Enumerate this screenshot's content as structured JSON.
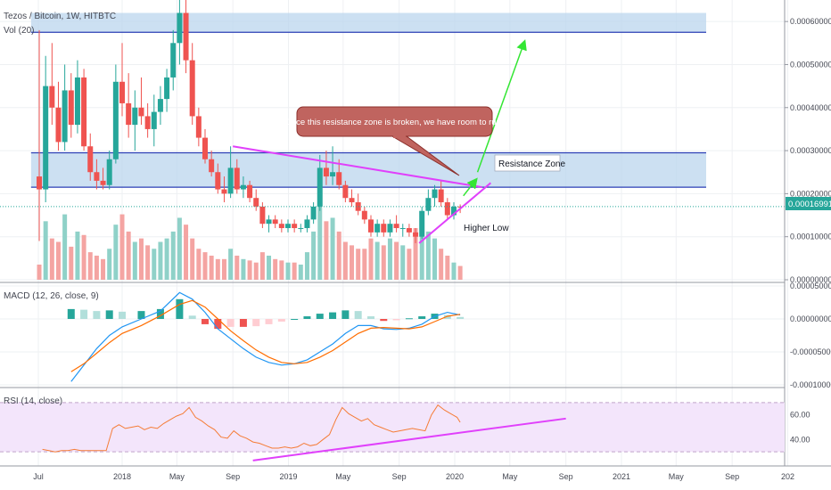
{
  "chart_data": [
    {
      "type": "candlestick",
      "pane": "price",
      "title": "Tezos / Bitcoin, 1W, HITBTC",
      "volume_label": "Vol (20)",
      "ylim": [
        0.0,
        0.00065
      ],
      "y_ticks": [
        "0.00000000",
        "0.00010000",
        "0.00020000",
        "0.00030000",
        "0.00040000",
        "0.00050000",
        "0.00060000"
      ],
      "last_price": "0.00016991",
      "colors": {
        "up": "#26a69a",
        "down": "#ef5350",
        "vol_up": "#8fd1c8",
        "vol_down": "#f4a4a2",
        "zone_fill": "#bbd6ee",
        "zone_line": "#2b3fb5",
        "magenta": "#e040fb",
        "green": "#33e633"
      },
      "zones": [
        {
          "top": 0.00062,
          "bottom": 0.000575
        },
        {
          "top": 0.000295,
          "bottom": 0.000215,
          "label": "Resistance Zone"
        }
      ],
      "trendlines": [
        {
          "from": [
            "2018-09-01",
            0.00031
          ],
          "to": [
            "2020-03-01",
            0.000215
          ]
        },
        {
          "from": [
            "2019-10-15",
            8.5e-05
          ],
          "to": [
            "2020-03-20",
            0.000225
          ]
        }
      ],
      "annotations": {
        "callout": "Once this resistance zone is broken, we have room to run!",
        "higher_low": "Higher Low",
        "resistance": "Resistance Zone"
      },
      "candles": [
        {
          "x": "2017-07-03",
          "o": 0.00024,
          "h": 0.00058,
          "l": 9e-05,
          "c": 0.00021
        },
        {
          "x": "2017-07-17",
          "o": 0.00021,
          "h": 0.00052,
          "l": 0.00018,
          "c": 0.00045
        },
        {
          "x": "2017-07-31",
          "o": 0.00045,
          "h": 0.00055,
          "l": 0.00036,
          "c": 0.0004
        },
        {
          "x": "2017-08-14",
          "o": 0.0004,
          "h": 0.00046,
          "l": 0.0003,
          "c": 0.00032
        },
        {
          "x": "2017-08-28",
          "o": 0.00032,
          "h": 0.0005,
          "l": 0.0003,
          "c": 0.00044
        },
        {
          "x": "2017-09-11",
          "o": 0.00044,
          "h": 0.00048,
          "l": 0.00033,
          "c": 0.00036
        },
        {
          "x": "2017-09-25",
          "o": 0.00036,
          "h": 0.00051,
          "l": 0.00034,
          "c": 0.00047
        },
        {
          "x": "2017-10-09",
          "o": 0.00047,
          "h": 0.00049,
          "l": 0.0003,
          "c": 0.00031
        },
        {
          "x": "2017-10-23",
          "o": 0.00031,
          "h": 0.00034,
          "l": 0.00023,
          "c": 0.00025
        },
        {
          "x": "2017-11-06",
          "o": 0.00025,
          "h": 0.00028,
          "l": 0.00021,
          "c": 0.00023
        },
        {
          "x": "2017-11-20",
          "o": 0.00023,
          "h": 0.00026,
          "l": 0.00021,
          "c": 0.00022
        },
        {
          "x": "2017-12-04",
          "o": 0.00022,
          "h": 0.0003,
          "l": 0.00021,
          "c": 0.00028
        },
        {
          "x": "2017-12-18",
          "o": 0.00028,
          "h": 0.0005,
          "l": 0.00027,
          "c": 0.00046
        },
        {
          "x": "2018-01-01",
          "o": 0.00046,
          "h": 0.00055,
          "l": 0.00038,
          "c": 0.00041
        },
        {
          "x": "2018-01-15",
          "o": 0.00041,
          "h": 0.00048,
          "l": 0.00033,
          "c": 0.00036
        },
        {
          "x": "2018-01-29",
          "o": 0.00036,
          "h": 0.00044,
          "l": 0.0003,
          "c": 0.0004
        },
        {
          "x": "2018-02-12",
          "o": 0.0004,
          "h": 0.00047,
          "l": 0.00036,
          "c": 0.00038
        },
        {
          "x": "2018-02-26",
          "o": 0.00038,
          "h": 0.00041,
          "l": 0.00033,
          "c": 0.00035
        },
        {
          "x": "2018-03-12",
          "o": 0.00035,
          "h": 0.00043,
          "l": 0.00031,
          "c": 0.00039
        },
        {
          "x": "2018-03-26",
          "o": 0.00039,
          "h": 0.00045,
          "l": 0.00036,
          "c": 0.00042
        },
        {
          "x": "2018-04-09",
          "o": 0.00042,
          "h": 0.00049,
          "l": 0.00039,
          "c": 0.00047
        },
        {
          "x": "2018-04-23",
          "o": 0.00047,
          "h": 0.00058,
          "l": 0.00044,
          "c": 0.00055
        },
        {
          "x": "2018-05-07",
          "o": 0.00055,
          "h": 0.00066,
          "l": 0.0005,
          "c": 0.00062
        },
        {
          "x": "2018-05-21",
          "o": 0.00062,
          "h": 0.00066,
          "l": 0.00048,
          "c": 0.00051
        },
        {
          "x": "2018-06-04",
          "o": 0.00051,
          "h": 0.00055,
          "l": 0.00036,
          "c": 0.00038
        },
        {
          "x": "2018-06-18",
          "o": 0.00038,
          "h": 0.0004,
          "l": 0.00031,
          "c": 0.00033
        },
        {
          "x": "2018-07-02",
          "o": 0.00033,
          "h": 0.00035,
          "l": 0.00027,
          "c": 0.00028
        },
        {
          "x": "2018-07-16",
          "o": 0.00028,
          "h": 0.0003,
          "l": 0.00024,
          "c": 0.00025
        },
        {
          "x": "2018-07-30",
          "o": 0.00025,
          "h": 0.00027,
          "l": 0.0002,
          "c": 0.00021
        },
        {
          "x": "2018-08-13",
          "o": 0.00021,
          "h": 0.00024,
          "l": 0.00018,
          "c": 0.0002
        },
        {
          "x": "2018-08-27",
          "o": 0.0002,
          "h": 0.00031,
          "l": 0.00019,
          "c": 0.00026
        },
        {
          "x": "2018-09-10",
          "o": 0.00026,
          "h": 0.00028,
          "l": 0.0002,
          "c": 0.00021
        },
        {
          "x": "2018-09-24",
          "o": 0.00021,
          "h": 0.00024,
          "l": 0.00019,
          "c": 0.00022
        },
        {
          "x": "2018-10-08",
          "o": 0.00022,
          "h": 0.00023,
          "l": 0.00018,
          "c": 0.00019
        },
        {
          "x": "2018-10-22",
          "o": 0.00019,
          "h": 0.00021,
          "l": 0.00016,
          "c": 0.00017
        },
        {
          "x": "2018-11-05",
          "o": 0.00017,
          "h": 0.00018,
          "l": 0.00012,
          "c": 0.00013
        },
        {
          "x": "2018-11-19",
          "o": 0.00013,
          "h": 0.00015,
          "l": 0.00011,
          "c": 0.00014
        },
        {
          "x": "2018-12-03",
          "o": 0.00014,
          "h": 0.00015,
          "l": 0.00012,
          "c": 0.00013
        },
        {
          "x": "2018-12-17",
          "o": 0.00013,
          "h": 0.00014,
          "l": 0.00011,
          "c": 0.00012
        },
        {
          "x": "2018-12-31",
          "o": 0.00012,
          "h": 0.00014,
          "l": 0.00011,
          "c": 0.00013
        },
        {
          "x": "2019-01-14",
          "o": 0.00013,
          "h": 0.00014,
          "l": 0.00011,
          "c": 0.00012
        },
        {
          "x": "2019-01-28",
          "o": 0.00012,
          "h": 0.00013,
          "l": 0.00011,
          "c": 0.00012
        },
        {
          "x": "2019-02-11",
          "o": 0.00012,
          "h": 0.00015,
          "l": 0.00011,
          "c": 0.00014
        },
        {
          "x": "2019-02-25",
          "o": 0.00014,
          "h": 0.00018,
          "l": 0.00013,
          "c": 0.00017
        },
        {
          "x": "2019-03-11",
          "o": 0.00017,
          "h": 0.00029,
          "l": 0.00016,
          "c": 0.00026
        },
        {
          "x": "2019-03-25",
          "o": 0.00026,
          "h": 0.0003,
          "l": 0.00022,
          "c": 0.00024
        },
        {
          "x": "2019-04-08",
          "o": 0.00024,
          "h": 0.00031,
          "l": 0.00022,
          "c": 0.00025
        },
        {
          "x": "2019-04-22",
          "o": 0.00025,
          "h": 0.00028,
          "l": 0.00021,
          "c": 0.00022
        },
        {
          "x": "2019-05-06",
          "o": 0.00022,
          "h": 0.00023,
          "l": 0.00018,
          "c": 0.00019
        },
        {
          "x": "2019-05-20",
          "o": 0.00019,
          "h": 0.00021,
          "l": 0.00017,
          "c": 0.00018
        },
        {
          "x": "2019-06-03",
          "o": 0.00018,
          "h": 0.0002,
          "l": 0.00015,
          "c": 0.00016
        },
        {
          "x": "2019-06-17",
          "o": 0.00016,
          "h": 0.00017,
          "l": 0.00013,
          "c": 0.00014
        },
        {
          "x": "2019-07-01",
          "o": 0.00014,
          "h": 0.00015,
          "l": 0.0001,
          "c": 0.00011
        },
        {
          "x": "2019-07-15",
          "o": 0.00011,
          "h": 0.00014,
          "l": 0.0001,
          "c": 0.00013
        },
        {
          "x": "2019-07-29",
          "o": 0.00013,
          "h": 0.00014,
          "l": 0.0001,
          "c": 0.00011
        },
        {
          "x": "2019-08-12",
          "o": 0.00011,
          "h": 0.00014,
          "l": 0.0001,
          "c": 0.00013
        },
        {
          "x": "2019-08-26",
          "o": 0.00013,
          "h": 0.00015,
          "l": 0.00011,
          "c": 0.00012
        },
        {
          "x": "2019-09-09",
          "o": 0.00012,
          "h": 0.00013,
          "l": 0.0001,
          "c": 0.00012
        },
        {
          "x": "2019-09-23",
          "o": 0.00012,
          "h": 0.00013,
          "l": 0.0001,
          "c": 0.00011
        },
        {
          "x": "2019-10-07",
          "o": 0.00011,
          "h": 0.00012,
          "l": 8.5e-05,
          "c": 0.0001
        },
        {
          "x": "2019-10-21",
          "o": 0.0001,
          "h": 0.00017,
          "l": 9.5e-05,
          "c": 0.00016
        },
        {
          "x": "2019-11-04",
          "o": 0.00016,
          "h": 0.00021,
          "l": 0.00015,
          "c": 0.00019
        },
        {
          "x": "2019-11-18",
          "o": 0.00019,
          "h": 0.00022,
          "l": 0.00017,
          "c": 0.00021
        },
        {
          "x": "2019-12-02",
          "o": 0.00021,
          "h": 0.00023,
          "l": 0.00017,
          "c": 0.00018
        },
        {
          "x": "2019-12-16",
          "o": 0.00018,
          "h": 0.00019,
          "l": 0.00014,
          "c": 0.00015
        },
        {
          "x": "2019-12-30",
          "o": 0.00015,
          "h": 0.00018,
          "l": 0.00014,
          "c": 0.00017
        },
        {
          "x": "2020-01-13",
          "o": 0.00017,
          "h": 0.000175,
          "l": 0.000155,
          "c": 0.00016991
        }
      ],
      "volume": [
        22,
        85,
        60,
        55,
        95,
        48,
        70,
        65,
        40,
        35,
        30,
        45,
        80,
        95,
        70,
        55,
        60,
        50,
        45,
        55,
        60,
        70,
        90,
        80,
        60,
        45,
        40,
        35,
        30,
        30,
        45,
        35,
        30,
        28,
        25,
        40,
        35,
        30,
        28,
        25,
        25,
        22,
        40,
        70,
        110,
        85,
        90,
        70,
        55,
        50,
        45,
        45,
        60,
        55,
        50,
        60,
        55,
        50,
        45,
        75,
        85,
        70,
        60,
        45,
        35,
        25,
        20
      ]
    },
    {
      "type": "line",
      "pane": "macd",
      "title": "MACD (12, 26, close, 9)",
      "ylim": [
        -0.0001,
        5e-05
      ],
      "y_ticks": [
        "0.00005000",
        "0.00000000",
        "-0.00005000",
        "-0.00010000"
      ],
      "colors": {
        "macd": "#2196f3",
        "signal": "#ff6d00",
        "hist_pos_strong": "#26a69a",
        "hist_pos_weak": "#b2dfdb",
        "hist_neg_strong": "#ef5350",
        "hist_neg_weak": "#ffcdd2"
      },
      "x": [
        "2017-09-11",
        "2017-10-09",
        "2017-11-06",
        "2017-12-04",
        "2018-01-01",
        "2018-02-12",
        "2018-03-26",
        "2018-05-07",
        "2018-06-04",
        "2018-07-02",
        "2018-07-30",
        "2018-08-27",
        "2018-09-24",
        "2018-10-22",
        "2018-11-19",
        "2018-12-17",
        "2019-01-14",
        "2019-02-11",
        "2019-03-11",
        "2019-04-08",
        "2019-05-06",
        "2019-06-03",
        "2019-07-01",
        "2019-07-29",
        "2019-08-26",
        "2019-09-23",
        "2019-10-21",
        "2019-11-18",
        "2019-12-16",
        "2020-01-13"
      ],
      "series": [
        {
          "name": "",
          "values": [
            -9.5e-05,
            -7e-05,
            -4.5e-05,
            -2.5e-05,
            -1.2e-05,
            0.0,
            1.2e-05,
            4e-05,
            3e-05,
            1e-05,
            -1.5e-05,
            -3e-05,
            -4.5e-05,
            -5.8e-05,
            -6.6e-05,
            -7e-05,
            -6.8e-05,
            -6.2e-05,
            -5e-05,
            -3.8e-05,
            -2.2e-05,
            -1e-05,
            -1e-05,
            -1.5e-05,
            -1.6e-05,
            -1.4e-05,
            -8e-06,
            4e-06,
            1e-05,
            6e-06
          ]
        },
        {
          "name": "",
          "values": [
            -8e-05,
            -6.8e-05,
            -5.2e-05,
            -3.6e-05,
            -2.2e-05,
            -1e-05,
            5e-06,
            2.2e-05,
            2.8e-05,
            1.8e-05,
            0.0,
            -1.8e-05,
            -3.3e-05,
            -4.7e-05,
            -5.8e-05,
            -6.6e-05,
            -6.8e-05,
            -6.6e-05,
            -5.8e-05,
            -4.8e-05,
            -3.5e-05,
            -2.2e-05,
            -1.4e-05,
            -1.3e-05,
            -1.4e-05,
            -1.5e-05,
            -1.2e-05,
            -4e-06,
            4e-06,
            7e-06
          ]
        }
      ],
      "histogram": [
        1.5e-05,
        1.4e-05,
        1.2e-05,
        1.3e-05,
        1.1e-05,
        1.2e-05,
        1.5e-05,
        3e-05,
        5e-06,
        -8e-06,
        -1.5e-05,
        -1.2e-05,
        -1.2e-05,
        -1.1e-05,
        -8e-06,
        -4e-06,
        0.0,
        4e-06,
        8e-06,
        1e-05,
        1.3e-05,
        1.2e-05,
        4e-06,
        -3e-06,
        -2e-06,
        1e-06,
        4e-06,
        8e-06,
        6e-06,
        3e-06
      ]
    },
    {
      "type": "line",
      "pane": "rsi",
      "title": "RSI (14, close)",
      "ylim": [
        20,
        80
      ],
      "y_ticks": [
        "60.00",
        "40.00"
      ],
      "bands": [
        30,
        70
      ],
      "colors": {
        "rsi": "#f57c36",
        "band_fill": "#f3e5fb",
        "trend": "#e040fb"
      },
      "x": [
        "2017-07-10",
        "2017-07-24",
        "2017-08-07",
        "2017-08-21",
        "2017-09-04",
        "2017-09-18",
        "2017-10-02",
        "2017-10-16",
        "2017-10-30",
        "2017-11-13",
        "2017-11-27",
        "2017-12-11",
        "2017-12-25",
        "2018-01-08",
        "2018-01-22",
        "2018-02-05",
        "2018-02-19",
        "2018-03-05",
        "2018-03-19",
        "2018-04-02",
        "2018-04-16",
        "2018-04-30",
        "2018-05-14",
        "2018-05-28",
        "2018-06-11",
        "2018-06-25",
        "2018-07-09",
        "2018-07-23",
        "2018-08-06",
        "2018-08-20",
        "2018-09-03",
        "2018-09-17",
        "2018-10-01",
        "2018-10-15",
        "2018-10-29",
        "2018-11-12",
        "2018-11-26",
        "2018-12-10",
        "2018-12-24",
        "2019-01-07",
        "2019-01-21",
        "2019-02-04",
        "2019-02-18",
        "2019-03-04",
        "2019-03-18",
        "2019-04-01",
        "2019-04-15",
        "2019-04-29",
        "2019-05-13",
        "2019-05-27",
        "2019-06-10",
        "2019-06-24",
        "2019-07-08",
        "2019-07-22",
        "2019-08-05",
        "2019-08-19",
        "2019-09-02",
        "2019-09-16",
        "2019-09-30",
        "2019-10-14",
        "2019-10-28",
        "2019-11-11",
        "2019-11-25",
        "2019-12-09",
        "2019-12-23",
        "2020-01-06",
        "2020-01-13"
      ],
      "series": [
        {
          "name": "",
          "values": [
            32,
            31,
            30,
            31,
            31,
            32,
            31,
            31,
            31,
            31,
            31,
            49,
            52,
            49,
            50,
            51,
            48,
            50,
            49,
            53,
            56,
            59,
            61,
            66,
            58,
            55,
            51,
            48,
            42,
            41,
            47,
            43,
            41,
            38,
            37,
            35,
            33,
            33,
            34,
            33,
            34,
            37,
            35,
            36,
            40,
            44,
            56,
            66,
            61,
            58,
            55,
            57,
            52,
            50,
            48,
            46,
            47,
            48,
            49,
            48,
            47,
            60,
            68,
            64,
            61,
            58,
            54
          ]
        }
      ],
      "trendlines": [
        {
          "from": [
            "2018-10-15",
            23
          ],
          "to": [
            "2020-09-01",
            57
          ]
        }
      ]
    }
  ],
  "x_axis": {
    "labels": [
      {
        "date": "2017-07-01",
        "text": "Jul"
      },
      {
        "date": "2018-01-01",
        "text": "2018"
      },
      {
        "date": "2018-05-01",
        "text": "May"
      },
      {
        "date": "2018-09-01",
        "text": "Sep"
      },
      {
        "date": "2019-01-01",
        "text": "2019"
      },
      {
        "date": "2019-05-01",
        "text": "May"
      },
      {
        "date": "2019-09-01",
        "text": "Sep"
      },
      {
        "date": "2020-01-01",
        "text": "2020"
      },
      {
        "date": "2020-05-01",
        "text": "May"
      },
      {
        "date": "2020-09-01",
        "text": "Sep"
      },
      {
        "date": "2021-01-01",
        "text": "2021"
      },
      {
        "date": "2021-05-01",
        "text": "May"
      },
      {
        "date": "2021-09-01",
        "text": "Sep"
      },
      {
        "date": "2022-01-01",
        "text": "202"
      }
    ]
  }
}
